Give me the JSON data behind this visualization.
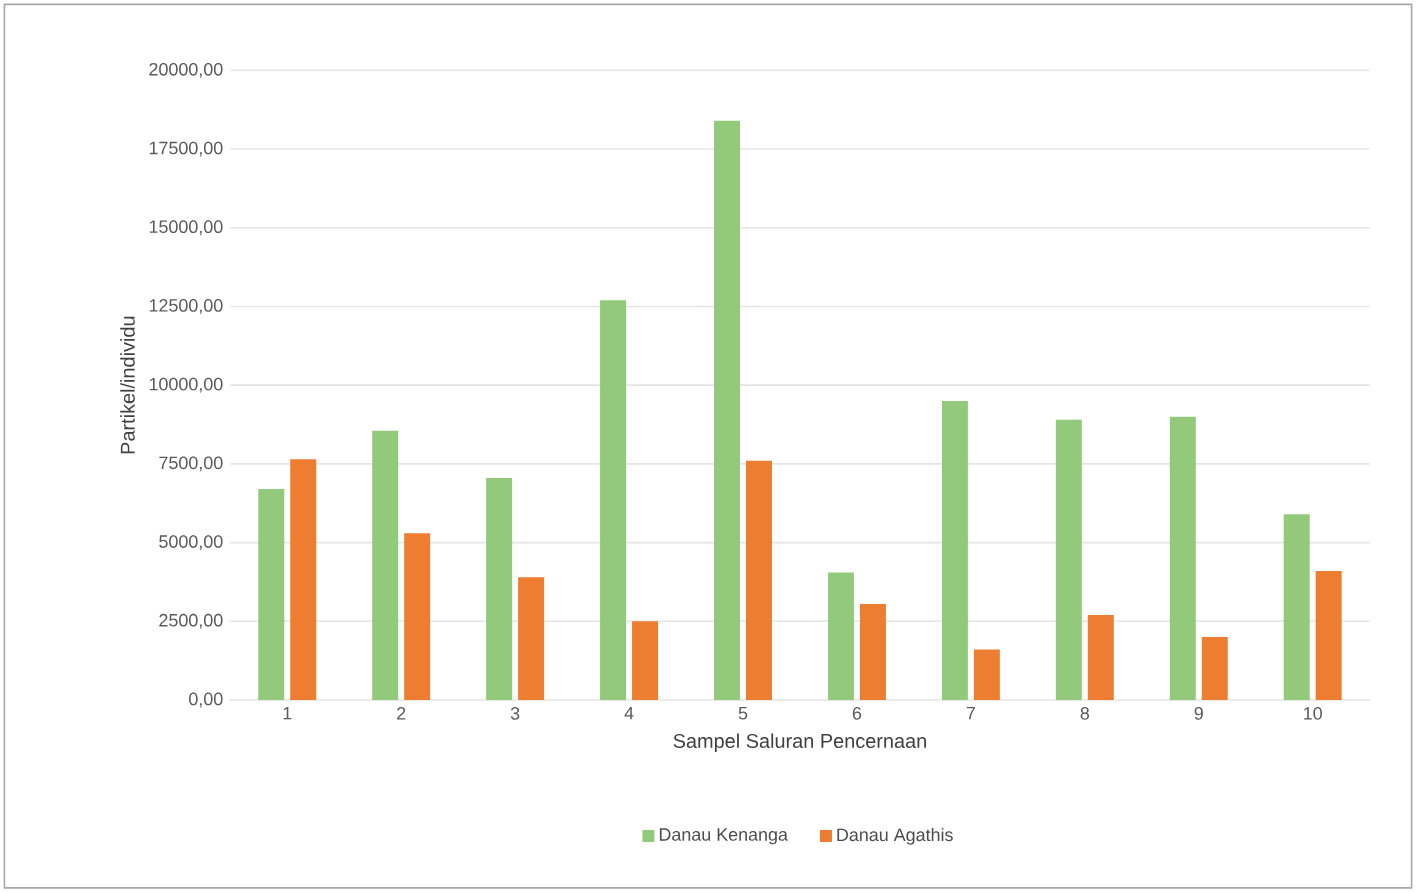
{
  "chart_data": {
    "type": "bar",
    "xlabel": "Sampel Saluran Pencernaan",
    "ylabel": "Partikel/individu",
    "categories": [
      "1",
      "2",
      "3",
      "4",
      "5",
      "6",
      "7",
      "8",
      "9",
      "10"
    ],
    "series": [
      {
        "name": "Danau Kenanga",
        "color": "#93c97a",
        "values": [
          6700,
          8550,
          7050,
          12700,
          18400,
          4050,
          9500,
          8900,
          9000,
          5900
        ]
      },
      {
        "name": "Danau Agathis",
        "color": "#ed7d31",
        "values": [
          7650,
          5300,
          3900,
          2500,
          7600,
          3050,
          1600,
          2700,
          2000,
          4100
        ]
      }
    ],
    "ylim": [
      0,
      20000
    ],
    "yticks": [
      {
        "value": 0,
        "label": "0,00"
      },
      {
        "value": 2500,
        "label": "2500,00"
      },
      {
        "value": 5000,
        "label": "5000,00"
      },
      {
        "value": 7500,
        "label": "7500,00"
      },
      {
        "value": 10000,
        "label": "10000,00"
      },
      {
        "value": 12500,
        "label": "12500,00"
      },
      {
        "value": 15000,
        "label": "15000,00"
      },
      {
        "value": 17500,
        "label": "17500,00"
      },
      {
        "value": 20000,
        "label": "20000,00"
      }
    ],
    "grid": "y",
    "legend": "bottom"
  }
}
